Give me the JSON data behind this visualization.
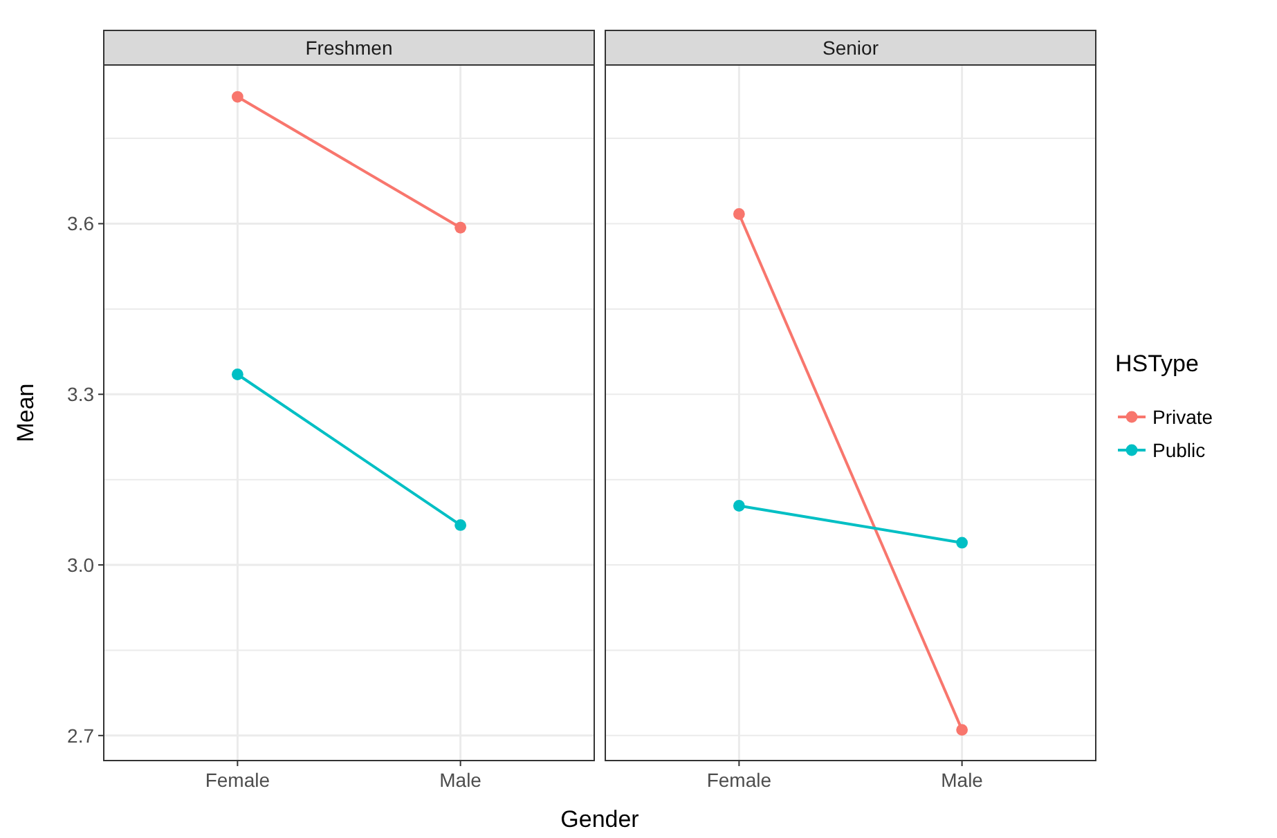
{
  "chart_data": [
    {
      "type": "line",
      "title": "Freshmen",
      "ylabel": "Mean",
      "xlabel": "Gender",
      "categories": [
        "Female",
        "Male"
      ],
      "series": [
        {
          "color": "#f8766d",
          "values": [
            3.823,
            3.593
          ]
        },
        {
          "color": "#00bfc4",
          "values": [
            3.335,
            3.07
          ]
        }
      ],
      "ylim": [
        2.656,
        3.879
      ],
      "yticks": [
        {
          "value": 2.85,
          "label": null
        },
        {
          "value": 3.15,
          "label": null
        },
        {
          "value": 3.45,
          "label": null
        },
        {
          "value": 3.75,
          "label": null
        },
        {
          "value": 2.7,
          "label": "2.7"
        },
        {
          "value": 3.0,
          "label": "3.0"
        },
        {
          "value": 3.3,
          "label": "3.3"
        },
        {
          "value": 3.6,
          "label": "3.6"
        }
      ],
      "grid": true,
      "marker": "circle",
      "legend": false
    },
    {
      "type": "line",
      "title": "Senior",
      "legend_title": "HSType",
      "categories": [
        "Female",
        "Male"
      ],
      "series": [
        {
          "name": "Private",
          "color": "#f8766d",
          "values": [
            3.617,
            2.71
          ]
        },
        {
          "name": "Public",
          "color": "#00bfc4",
          "values": [
            3.104,
            3.039
          ]
        }
      ],
      "ylim": [
        2.656,
        3.879
      ],
      "yticks": [
        {
          "value": 2.85,
          "label": null
        },
        {
          "value": 3.15,
          "label": null
        },
        {
          "value": 3.45,
          "label": null
        },
        {
          "value": 3.75,
          "label": null
        },
        {
          "value": 2.7,
          "label": null
        },
        {
          "value": 3.0,
          "label": null
        },
        {
          "value": 3.3,
          "label": null
        },
        {
          "value": 3.6,
          "label": null
        }
      ],
      "grid": true,
      "marker": "circle",
      "legend": "right",
      "tick_labels": "x"
    }
  ]
}
